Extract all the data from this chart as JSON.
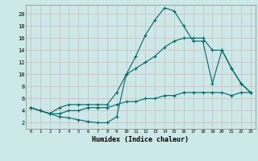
{
  "title": "",
  "xlabel": "Humidex (Indice chaleur)",
  "bg_color": "#cce8e8",
  "grid_color": "#aadddd",
  "line_color": "#006666",
  "xlim": [
    -0.5,
    23.5
  ],
  "ylim": [
    1.0,
    21.5
  ],
  "xticks": [
    0,
    1,
    2,
    3,
    4,
    5,
    6,
    7,
    8,
    9,
    10,
    11,
    12,
    13,
    14,
    15,
    16,
    17,
    18,
    19,
    20,
    21,
    22,
    23
  ],
  "yticks": [
    2,
    4,
    6,
    8,
    10,
    12,
    14,
    16,
    18,
    20
  ],
  "line1_x": [
    0,
    1,
    2,
    3,
    4,
    5,
    6,
    7,
    8,
    9,
    10,
    11,
    12,
    13,
    14,
    15,
    16,
    17,
    18,
    19,
    20,
    21,
    22,
    23
  ],
  "line1_y": [
    4.5,
    4.0,
    3.5,
    3.0,
    2.8,
    2.5,
    2.2,
    2.0,
    2.0,
    3.0,
    10.0,
    13.0,
    16.5,
    19.0,
    21.0,
    20.5,
    18.0,
    15.5,
    15.5,
    8.5,
    14.0,
    11.0,
    8.5,
    7.0
  ],
  "line2_x": [
    0,
    1,
    2,
    3,
    4,
    5,
    6,
    7,
    8,
    9,
    10,
    11,
    12,
    13,
    14,
    15,
    16,
    17,
    18,
    19,
    20,
    21,
    22,
    23
  ],
  "line2_y": [
    4.5,
    4.0,
    3.5,
    4.5,
    5.0,
    5.0,
    5.0,
    5.0,
    5.0,
    7.0,
    10.0,
    11.0,
    12.0,
    13.0,
    14.5,
    15.5,
    16.0,
    16.0,
    16.0,
    14.0,
    14.0,
    11.0,
    8.5,
    7.0
  ],
  "line3_x": [
    0,
    1,
    2,
    3,
    4,
    5,
    6,
    7,
    8,
    9,
    10,
    11,
    12,
    13,
    14,
    15,
    16,
    17,
    18,
    19,
    20,
    21,
    22,
    23
  ],
  "line3_y": [
    4.5,
    4.0,
    3.5,
    3.5,
    4.0,
    4.0,
    4.5,
    4.5,
    4.5,
    5.0,
    5.5,
    5.5,
    6.0,
    6.0,
    6.5,
    6.5,
    7.0,
    7.0,
    7.0,
    7.0,
    7.0,
    6.5,
    7.0,
    7.0
  ]
}
